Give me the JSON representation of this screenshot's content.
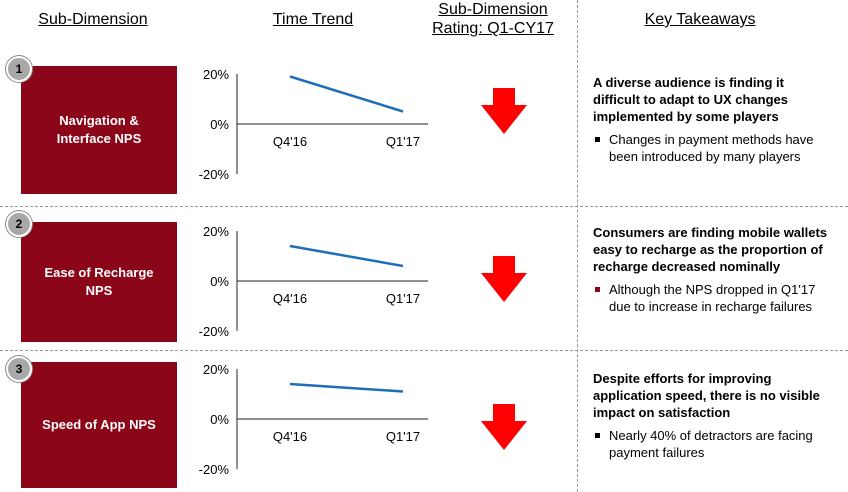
{
  "headers": {
    "sub_dimension": "Sub-Dimension",
    "time_trend": "Time Trend",
    "rating_line1": "Sub-Dimension",
    "rating_line2": "Rating: Q1-CY17",
    "key_takeaways": "Key Takeaways"
  },
  "rows": [
    {
      "number": "1",
      "name_line1": "Navigation &",
      "name_line2": "Interface NPS",
      "rating": "down",
      "takeaway_head": "A diverse audience is finding it difficult to adapt to UX changes implemented by some players",
      "bullet": "Changes in payment methods have been introduced by many players"
    },
    {
      "number": "2",
      "name_line1": "Ease of Recharge",
      "name_line2": "NPS",
      "rating": "down",
      "takeaway_head": "Consumers are finding mobile wallets easy to recharge as the proportion of recharge decreased nominally",
      "bullet": "Although the NPS dropped in Q1'17 due to increase in recharge failures"
    },
    {
      "number": "3",
      "name_line1": "Speed of App NPS",
      "name_line2": "",
      "rating": "down",
      "takeaway_head": "Despite efforts for improving application speed, there is no visible impact on satisfaction",
      "bullet": "Nearly 40% of detractors are facing payment failures"
    }
  ],
  "colors": {
    "box": "#8b0618",
    "line": "#1f6fb8",
    "arrow": "#ff0000",
    "badge": "#a8a8a8"
  },
  "chart_data": [
    {
      "type": "line",
      "categories": [
        "Q4'16",
        "Q1'17"
      ],
      "values": [
        19,
        5
      ],
      "ylim": [
        -20,
        20
      ],
      "yticks": [
        "20%",
        "0%",
        "-20%"
      ],
      "grid": false
    },
    {
      "type": "line",
      "categories": [
        "Q4'16",
        "Q1'17"
      ],
      "values": [
        14,
        6
      ],
      "ylim": [
        -20,
        20
      ],
      "yticks": [
        "20%",
        "0%",
        "-20%"
      ],
      "grid": false
    },
    {
      "type": "line",
      "categories": [
        "Q4'16",
        "Q1'17"
      ],
      "values": [
        14,
        11
      ],
      "ylim": [
        -20,
        20
      ],
      "yticks": [
        "20%",
        "0%",
        "-20%"
      ],
      "grid": false
    }
  ]
}
